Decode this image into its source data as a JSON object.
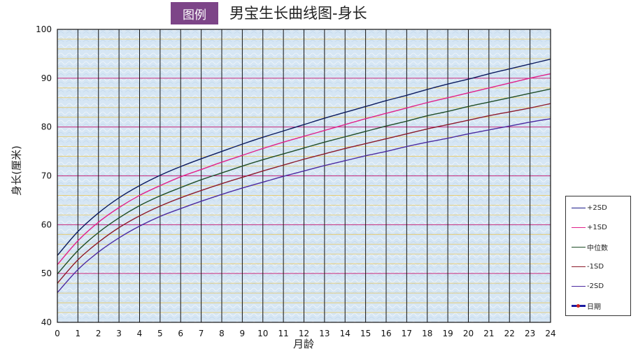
{
  "header": {
    "tag": "图例",
    "title": "男宝生长曲线图-身长"
  },
  "chart_data": {
    "type": "line",
    "title": "男宝生长曲线图-身长",
    "xlabel": "月龄",
    "ylabel": "身长(厘米)",
    "xlim": [
      0,
      24
    ],
    "ylim": [
      40,
      100
    ],
    "x_ticks": [
      0,
      1,
      2,
      3,
      4,
      5,
      6,
      7,
      8,
      9,
      10,
      11,
      12,
      13,
      14,
      15,
      16,
      17,
      18,
      19,
      20,
      21,
      22,
      23,
      24
    ],
    "y_ticks": [
      40,
      50,
      60,
      70,
      80,
      90,
      100
    ],
    "grid": true,
    "legend_position": "right",
    "x": [
      0,
      1,
      2,
      3,
      4,
      5,
      6,
      7,
      8,
      9,
      10,
      11,
      12,
      13,
      14,
      15,
      16,
      17,
      18,
      19,
      20,
      21,
      22,
      23,
      24
    ],
    "series": [
      {
        "name": "+2SD",
        "color": "#0b1a5e",
        "values": [
          53.7,
          58.6,
          62.4,
          65.5,
          68.0,
          70.1,
          71.9,
          73.5,
          75.0,
          76.5,
          77.9,
          79.2,
          80.5,
          81.8,
          83.0,
          84.2,
          85.4,
          86.5,
          87.7,
          88.8,
          89.8,
          90.9,
          91.9,
          92.9,
          93.9
        ]
      },
      {
        "name": "+1SD",
        "color": "#e0218a",
        "values": [
          51.8,
          56.7,
          60.5,
          63.5,
          66.0,
          68.0,
          69.8,
          71.3,
          72.8,
          74.2,
          75.6,
          76.9,
          78.1,
          79.3,
          80.5,
          81.7,
          82.8,
          83.9,
          85.0,
          86.0,
          87.0,
          88.0,
          89.0,
          90.0,
          90.9
        ]
      },
      {
        "name": "中位数",
        "color": "#1f4d27",
        "values": [
          49.9,
          54.7,
          58.4,
          61.4,
          63.9,
          65.9,
          67.6,
          69.2,
          70.6,
          72.0,
          73.3,
          74.5,
          75.7,
          76.9,
          78.0,
          79.1,
          80.2,
          81.2,
          82.3,
          83.2,
          84.2,
          85.1,
          86.0,
          86.9,
          87.8
        ]
      },
      {
        "name": "-1SD",
        "color": "#8b1a2b",
        "values": [
          48.0,
          52.8,
          56.4,
          59.4,
          61.8,
          63.8,
          65.5,
          67.0,
          68.4,
          69.7,
          71.0,
          72.2,
          73.4,
          74.5,
          75.6,
          76.6,
          77.6,
          78.6,
          79.6,
          80.5,
          81.4,
          82.3,
          83.1,
          83.9,
          84.8
        ]
      },
      {
        "name": "-2SD",
        "color": "#4b2aa0",
        "values": [
          46.1,
          50.8,
          54.4,
          57.3,
          59.7,
          61.7,
          63.3,
          64.8,
          66.2,
          67.5,
          68.7,
          69.9,
          71.0,
          72.1,
          73.1,
          74.1,
          75.0,
          76.0,
          76.9,
          77.7,
          78.6,
          79.4,
          80.2,
          81.0,
          81.7
        ]
      }
    ],
    "legend": [
      {
        "label": "+2SD",
        "color": "#1a1a8a",
        "thick": false,
        "dot": false
      },
      {
        "label": "+1SD",
        "color": "#e0218a",
        "thick": false,
        "dot": false
      },
      {
        "label": "中位数",
        "color": "#1f4d27",
        "thick": false,
        "dot": false
      },
      {
        "label": "-1SD",
        "color": "#8b1a2b",
        "thick": false,
        "dot": false
      },
      {
        "label": "-2SD",
        "color": "#4b2aa0",
        "thick": false,
        "dot": false
      },
      {
        "label": "日期",
        "color": "#1a1aa0",
        "thick": true,
        "dot": true
      }
    ],
    "colors": {
      "plot_background": "#d6e6f4",
      "major_h_grid": "#c8277a",
      "minor_h_grid": "#e8c860",
      "vertical_grid": "#111111"
    }
  }
}
